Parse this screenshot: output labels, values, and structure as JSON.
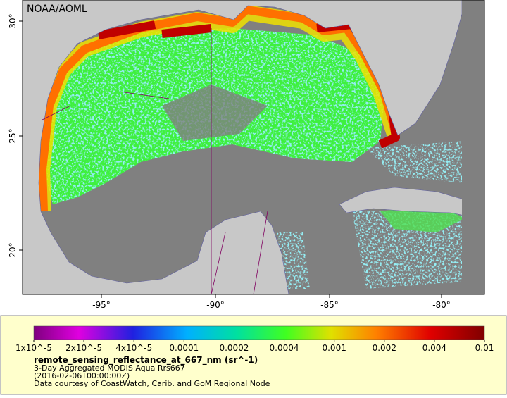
{
  "header": {
    "credit": "NOAA/AOML"
  },
  "map": {
    "lat_ticks": [
      "30°",
      "25°",
      "20°"
    ],
    "lon_ticks": [
      "-95°",
      "-90°",
      "-85°",
      "-80°"
    ]
  },
  "colorbar": {
    "labels": [
      "1x10^-5",
      "2x10^-5",
      "4x10^-5",
      "0.0001",
      "0.0002",
      "0.0004",
      "0.001",
      "0.002",
      "0.004",
      "0.01"
    ]
  },
  "caption": {
    "title": "remote_sensing_reflectance_at_667_nm (sr^-1)",
    "lines": [
      "3-Day Aggregated MODIS Aqua Rrs667",
      "(2016-02-06T00:00:00Z)",
      "Data courtesy of CoastWatch, Carib. and GoM Regional Node"
    ]
  }
}
